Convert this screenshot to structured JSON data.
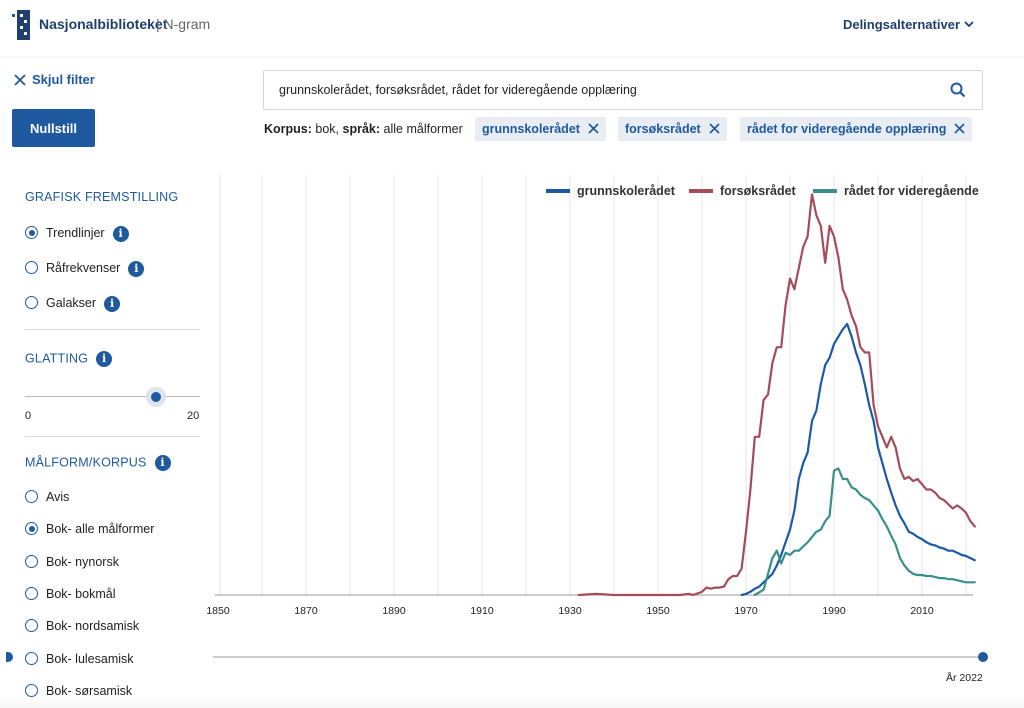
{
  "header": {
    "brand": "Nasjonalbiblioteket",
    "product": "| N-gram",
    "share_label": "Delingsalternativer",
    "logo_icon": "nb-logo-icon",
    "share_icon": "chevron-down-icon"
  },
  "filter": {
    "hide_label": "Skjul filter",
    "reset_label": "Nullstill",
    "graphics_title": "GRAFISK FREMSTILLING",
    "graphics_options": [
      {
        "label": "Trendlinjer",
        "checked": true,
        "info": "i"
      },
      {
        "label": "Råfrekvenser",
        "checked": false,
        "info": "i"
      },
      {
        "label": "Galakser",
        "checked": false,
        "info": "i"
      }
    ],
    "smoothing_title": "GLATTING",
    "smoothing_info": "i",
    "smoothing_min": "0",
    "smoothing_max": "20",
    "smoothing_value": 14,
    "corpus_title": "MÅLFORM/KORPUS",
    "corpus_info": "i",
    "corpus_options": [
      {
        "label": "Avis",
        "checked": false
      },
      {
        "label": "Bok- alle målformer",
        "checked": true
      },
      {
        "label": "Bok- nynorsk",
        "checked": false
      },
      {
        "label": "Bok- bokmål",
        "checked": false
      },
      {
        "label": "Bok- nordsamisk",
        "checked": false
      },
      {
        "label": "Bok- lulesamisk",
        "checked": false
      },
      {
        "label": "Bok- sørsamisk",
        "checked": false
      }
    ]
  },
  "search": {
    "value": "grunnskolerådet, forsøksrådet, rådet for videregående opplæring",
    "icon": "search-icon"
  },
  "corpus_line": {
    "corpus_key": "Korpus:",
    "corpus_val": "bok,",
    "lang_key": "språk:",
    "lang_val": "alle målformer"
  },
  "chips": [
    {
      "label": "grunnskolerådet"
    },
    {
      "label": "forsøksrådet"
    },
    {
      "label": "rådet for videregående opplæring"
    }
  ],
  "year_range": {
    "label": "År 2022",
    "end_year": 2022
  },
  "colors": {
    "accent": "#1f5aa0",
    "series1": "#1a5aa6",
    "series2": "#a64b5b",
    "series3": "#3a8f8a"
  },
  "chart_data": {
    "type": "line",
    "x_ticks": [
      "1850",
      "1870",
      "1890",
      "1910",
      "1930",
      "1950",
      "1970",
      "1990",
      "2010"
    ],
    "xlim": [
      1850,
      2022
    ],
    "grid": "vertical",
    "legend_position": "top-right",
    "series": [
      {
        "name": "grunnskolerådet",
        "color": "#1a5aa6",
        "points": [
          [
            1969,
            0
          ],
          [
            1970,
            1
          ],
          [
            1971,
            3
          ],
          [
            1972,
            6
          ],
          [
            1973,
            8
          ],
          [
            1974,
            12
          ],
          [
            1975,
            16
          ],
          [
            1976,
            20
          ],
          [
            1977,
            28
          ],
          [
            1978,
            38
          ],
          [
            1979,
            50
          ],
          [
            1980,
            62
          ],
          [
            1981,
            80
          ],
          [
            1982,
            110
          ],
          [
            1983,
            125
          ],
          [
            1984,
            135
          ],
          [
            1985,
            165
          ],
          [
            1986,
            175
          ],
          [
            1987,
            200
          ],
          [
            1988,
            218
          ],
          [
            1989,
            225
          ],
          [
            1990,
            238
          ],
          [
            1991,
            245
          ],
          [
            1992,
            252
          ],
          [
            1993,
            257
          ],
          [
            1994,
            245
          ],
          [
            1995,
            230
          ],
          [
            1996,
            218
          ],
          [
            1997,
            200
          ],
          [
            1998,
            180
          ],
          [
            1999,
            165
          ],
          [
            2000,
            140
          ],
          [
            2001,
            125
          ],
          [
            2002,
            110
          ],
          [
            2003,
            97
          ],
          [
            2004,
            85
          ],
          [
            2005,
            75
          ],
          [
            2006,
            68
          ],
          [
            2007,
            60
          ],
          [
            2008,
            58
          ],
          [
            2009,
            55
          ],
          [
            2010,
            53
          ],
          [
            2011,
            50
          ],
          [
            2012,
            48
          ],
          [
            2013,
            47
          ],
          [
            2014,
            45
          ],
          [
            2015,
            44
          ],
          [
            2016,
            42
          ],
          [
            2017,
            42
          ],
          [
            2018,
            40
          ],
          [
            2019,
            38
          ],
          [
            2020,
            37
          ],
          [
            2021,
            35
          ],
          [
            2022,
            33
          ]
        ]
      },
      {
        "name": "forsøksrådet",
        "color": "#a64b5b",
        "points": [
          [
            1932,
            0
          ],
          [
            1936,
            1
          ],
          [
            1940,
            0
          ],
          [
            1946,
            0
          ],
          [
            1950,
            0
          ],
          [
            1955,
            0
          ],
          [
            1957,
            1
          ],
          [
            1958,
            0
          ],
          [
            1960,
            3
          ],
          [
            1961,
            7
          ],
          [
            1962,
            6
          ],
          [
            1963,
            7
          ],
          [
            1964,
            7
          ],
          [
            1965,
            8
          ],
          [
            1966,
            15
          ],
          [
            1967,
            18
          ],
          [
            1968,
            18
          ],
          [
            1969,
            25
          ],
          [
            1970,
            60
          ],
          [
            1971,
            100
          ],
          [
            1972,
            150
          ],
          [
            1973,
            150
          ],
          [
            1974,
            185
          ],
          [
            1975,
            190
          ],
          [
            1976,
            220
          ],
          [
            1977,
            235
          ],
          [
            1978,
            235
          ],
          [
            1979,
            275
          ],
          [
            1980,
            300
          ],
          [
            1981,
            290
          ],
          [
            1982,
            310
          ],
          [
            1983,
            330
          ],
          [
            1984,
            340
          ],
          [
            1985,
            380
          ],
          [
            1986,
            360
          ],
          [
            1987,
            350
          ],
          [
            1988,
            315
          ],
          [
            1989,
            350
          ],
          [
            1990,
            340
          ],
          [
            1991,
            320
          ],
          [
            1992,
            290
          ],
          [
            1993,
            280
          ],
          [
            1994,
            265
          ],
          [
            1995,
            255
          ],
          [
            1996,
            235
          ],
          [
            1997,
            230
          ],
          [
            1998,
            230
          ],
          [
            1999,
            180
          ],
          [
            2000,
            160
          ],
          [
            2001,
            150
          ],
          [
            2002,
            140
          ],
          [
            2003,
            150
          ],
          [
            2004,
            140
          ],
          [
            2005,
            120
          ],
          [
            2006,
            110
          ],
          [
            2007,
            112
          ],
          [
            2008,
            108
          ],
          [
            2009,
            110
          ],
          [
            2010,
            105
          ],
          [
            2011,
            100
          ],
          [
            2012,
            100
          ],
          [
            2013,
            97
          ],
          [
            2014,
            92
          ],
          [
            2015,
            90
          ],
          [
            2016,
            86
          ],
          [
            2017,
            82
          ],
          [
            2018,
            85
          ],
          [
            2019,
            82
          ],
          [
            2020,
            78
          ],
          [
            2021,
            70
          ],
          [
            2022,
            65
          ]
        ]
      },
      {
        "name": "rådet for videregående",
        "color": "#3a8f8a",
        "points": [
          [
            1972,
            0
          ],
          [
            1974,
            5
          ],
          [
            1975,
            20
          ],
          [
            1976,
            35
          ],
          [
            1977,
            42
          ],
          [
            1978,
            30
          ],
          [
            1979,
            40
          ],
          [
            1980,
            38
          ],
          [
            1981,
            42
          ],
          [
            1982,
            42
          ],
          [
            1983,
            46
          ],
          [
            1984,
            50
          ],
          [
            1985,
            55
          ],
          [
            1986,
            60
          ],
          [
            1987,
            62
          ],
          [
            1988,
            70
          ],
          [
            1989,
            75
          ],
          [
            1990,
            118
          ],
          [
            1991,
            120
          ],
          [
            1992,
            110
          ],
          [
            1993,
            110
          ],
          [
            1994,
            102
          ],
          [
            1995,
            100
          ],
          [
            1996,
            95
          ],
          [
            1997,
            92
          ],
          [
            1998,
            90
          ],
          [
            1999,
            85
          ],
          [
            2000,
            80
          ],
          [
            2001,
            72
          ],
          [
            2002,
            65
          ],
          [
            2003,
            56
          ],
          [
            2004,
            48
          ],
          [
            2005,
            35
          ],
          [
            2006,
            28
          ],
          [
            2007,
            23
          ],
          [
            2008,
            20
          ],
          [
            2009,
            19
          ],
          [
            2010,
            19
          ],
          [
            2011,
            18
          ],
          [
            2012,
            18
          ],
          [
            2013,
            17
          ],
          [
            2014,
            16
          ],
          [
            2015,
            16
          ],
          [
            2016,
            15
          ],
          [
            2017,
            15
          ],
          [
            2018,
            14
          ],
          [
            2019,
            13
          ],
          [
            2020,
            12
          ],
          [
            2021,
            12
          ],
          [
            2022,
            12
          ]
        ]
      }
    ]
  }
}
